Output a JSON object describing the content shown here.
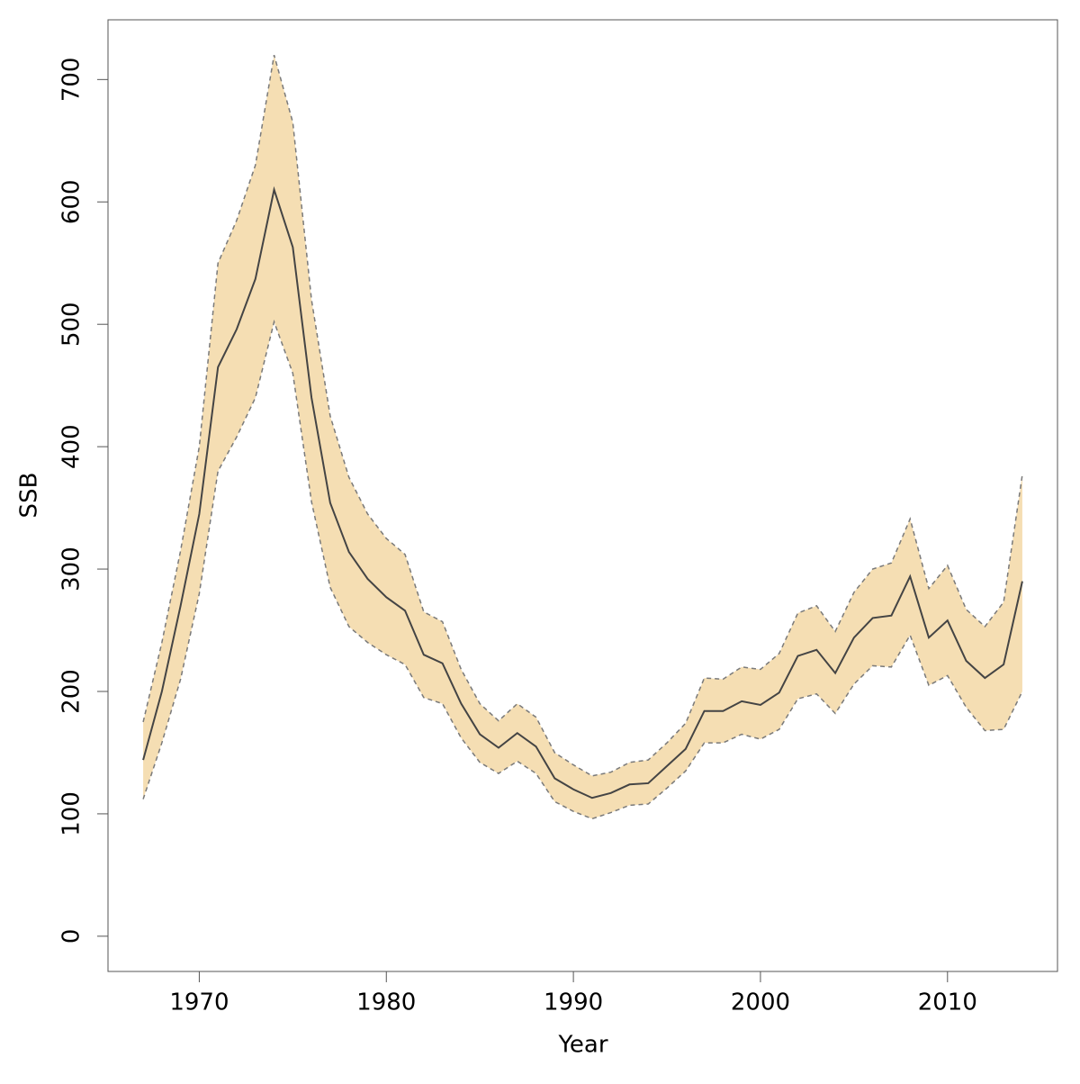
{
  "chart_data": {
    "type": "band",
    "x_label": "Year",
    "y_label": "SSB",
    "x": [
      1967,
      1968,
      1969,
      1970,
      1971,
      1972,
      1973,
      1974,
      1975,
      1976,
      1977,
      1978,
      1979,
      1980,
      1981,
      1982,
      1983,
      1984,
      1985,
      1986,
      1987,
      1988,
      1989,
      1990,
      1991,
      1992,
      1993,
      1994,
      1995,
      1996,
      1997,
      1998,
      1999,
      2000,
      2001,
      2002,
      2003,
      2004,
      2005,
      2006,
      2007,
      2008,
      2009,
      2010,
      2011,
      2012,
      2013,
      2014
    ],
    "values": [
      144,
      200,
      270,
      345,
      465,
      496,
      537,
      610,
      563,
      440,
      354,
      314,
      292,
      277,
      266,
      230,
      223,
      190,
      165,
      154,
      166,
      155,
      129,
      120,
      113,
      117,
      124,
      125,
      139,
      153,
      184,
      184,
      192,
      189,
      199,
      229,
      234,
      215,
      244,
      260,
      262,
      294,
      244,
      258,
      225,
      211,
      222,
      290
    ],
    "upper": [
      175,
      240,
      315,
      400,
      550,
      585,
      630,
      720,
      665,
      520,
      425,
      375,
      345,
      325,
      312,
      265,
      257,
      218,
      190,
      176,
      190,
      179,
      150,
      140,
      131,
      134,
      142,
      144,
      158,
      174,
      211,
      210,
      220,
      218,
      231,
      264,
      270,
      249,
      281,
      300,
      305,
      341,
      284,
      303,
      267,
      253,
      273,
      377
    ],
    "lower": [
      112,
      158,
      210,
      280,
      380,
      408,
      440,
      502,
      460,
      355,
      285,
      253,
      240,
      230,
      222,
      195,
      190,
      162,
      142,
      133,
      143,
      133,
      110,
      102,
      96,
      101,
      107,
      108,
      121,
      135,
      158,
      158,
      165,
      161,
      169,
      194,
      198,
      182,
      206,
      221,
      220,
      246,
      205,
      213,
      187,
      168,
      169,
      200
    ],
    "line_color": "#444444",
    "band_color": "#f5deb3",
    "bound_color": "#7a7a7a",
    "xlim": [
      1965.12,
      2015.88
    ],
    "ylim": [
      -28.8,
      748.8
    ],
    "xticks": [
      1970,
      1980,
      1990,
      2000,
      2010
    ],
    "yticks": [
      0,
      100,
      200,
      300,
      400,
      500,
      600,
      700
    ]
  }
}
